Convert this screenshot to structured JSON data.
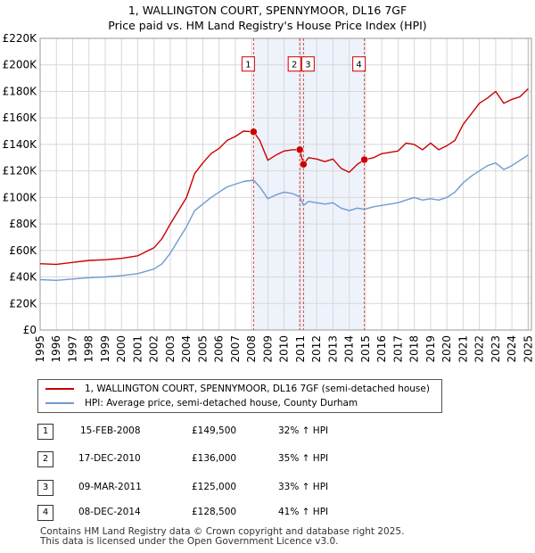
{
  "header": {
    "title_line1": "1, WALLINGTON COURT, SPENNYMOOR, DL16 7GF",
    "title_line2": "Price paid vs. HM Land Registry's House Price Index (HPI)"
  },
  "colors": {
    "property": "#cc0000",
    "hpi": "#6f9bd1",
    "shade": "#eef2fb",
    "marker_line": "#cc0000",
    "grid": "#d8d8d8"
  },
  "chart_data": {
    "type": "line",
    "title": "1, WALLINGTON COURT, SPENNYMOOR, DL16 7GF — Price paid vs. HM Land Registry's House Price Index (HPI)",
    "xlabel": "",
    "ylabel": "",
    "xlim": [
      1995,
      2025.2
    ],
    "ylim": [
      0,
      220000
    ],
    "grid": true,
    "x_ticks": [
      "1995",
      "1996",
      "1997",
      "1998",
      "1999",
      "2000",
      "2001",
      "2002",
      "2003",
      "2004",
      "2005",
      "2006",
      "2007",
      "2008",
      "2009",
      "2010",
      "2011",
      "2012",
      "2013",
      "2014",
      "2015",
      "2016",
      "2017",
      "2018",
      "2019",
      "2020",
      "2021",
      "2022",
      "2023",
      "2024",
      "2025"
    ],
    "y_ticks": [
      "£0",
      "£20K",
      "£40K",
      "£60K",
      "£80K",
      "£100K",
      "£120K",
      "£140K",
      "£160K",
      "£180K",
      "£200K",
      "£220K"
    ],
    "series": [
      {
        "name": "1, WALLINGTON COURT, SPENNYMOOR, DL16 7GF (semi-detached house)",
        "color": "#cc0000",
        "points": [
          [
            1995.0,
            50000
          ],
          [
            1996.0,
            49500
          ],
          [
            1997.0,
            51000
          ],
          [
            1998.0,
            52500
          ],
          [
            1999.0,
            53000
          ],
          [
            2000.0,
            54000
          ],
          [
            2001.0,
            56000
          ],
          [
            2002.0,
            62000
          ],
          [
            2002.5,
            69000
          ],
          [
            2003.0,
            80000
          ],
          [
            2003.5,
            90000
          ],
          [
            2004.0,
            100000
          ],
          [
            2004.5,
            118000
          ],
          [
            2005.0,
            126000
          ],
          [
            2005.5,
            133000
          ],
          [
            2006.0,
            137000
          ],
          [
            2006.5,
            143000
          ],
          [
            2007.0,
            146000
          ],
          [
            2007.5,
            150000
          ],
          [
            2008.12,
            149500
          ],
          [
            2008.5,
            143000
          ],
          [
            2009.0,
            128000
          ],
          [
            2009.5,
            132000
          ],
          [
            2010.0,
            135000
          ],
          [
            2010.5,
            136000
          ],
          [
            2010.96,
            136000
          ],
          [
            2011.19,
            125000
          ],
          [
            2011.5,
            130000
          ],
          [
            2012.0,
            129000
          ],
          [
            2012.5,
            127000
          ],
          [
            2013.0,
            129000
          ],
          [
            2013.5,
            122000
          ],
          [
            2014.0,
            119000
          ],
          [
            2014.5,
            125000
          ],
          [
            2014.93,
            128500
          ],
          [
            2015.5,
            130000
          ],
          [
            2016.0,
            133000
          ],
          [
            2017.0,
            135000
          ],
          [
            2017.5,
            141000
          ],
          [
            2018.0,
            140000
          ],
          [
            2018.5,
            136000
          ],
          [
            2019.0,
            141000
          ],
          [
            2019.5,
            136000
          ],
          [
            2020.0,
            139000
          ],
          [
            2020.5,
            143000
          ],
          [
            2021.0,
            155000
          ],
          [
            2021.5,
            163000
          ],
          [
            2022.0,
            171000
          ],
          [
            2022.5,
            175000
          ],
          [
            2023.0,
            180000
          ],
          [
            2023.5,
            171000
          ],
          [
            2024.0,
            174000
          ],
          [
            2024.5,
            176000
          ],
          [
            2025.0,
            182000
          ]
        ]
      },
      {
        "name": "HPI: Average price, semi-detached house, County Durham",
        "color": "#6f9bd1",
        "points": [
          [
            1995.0,
            38000
          ],
          [
            1996.0,
            37500
          ],
          [
            1997.0,
            38500
          ],
          [
            1998.0,
            39500
          ],
          [
            1999.0,
            40000
          ],
          [
            2000.0,
            41000
          ],
          [
            2001.0,
            42500
          ],
          [
            2002.0,
            46000
          ],
          [
            2002.5,
            50000
          ],
          [
            2003.0,
            58000
          ],
          [
            2003.5,
            68000
          ],
          [
            2004.0,
            78000
          ],
          [
            2004.5,
            90000
          ],
          [
            2005.0,
            95000
          ],
          [
            2005.5,
            100000
          ],
          [
            2006.0,
            104000
          ],
          [
            2006.5,
            108000
          ],
          [
            2007.0,
            110000
          ],
          [
            2007.5,
            112000
          ],
          [
            2008.12,
            113000
          ],
          [
            2008.5,
            108000
          ],
          [
            2009.0,
            99000
          ],
          [
            2009.5,
            102000
          ],
          [
            2010.0,
            104000
          ],
          [
            2010.5,
            103000
          ],
          [
            2010.96,
            100500
          ],
          [
            2011.19,
            94000
          ],
          [
            2011.5,
            97000
          ],
          [
            2012.0,
            96000
          ],
          [
            2012.5,
            95000
          ],
          [
            2013.0,
            96000
          ],
          [
            2013.5,
            92000
          ],
          [
            2014.0,
            90000
          ],
          [
            2014.5,
            92000
          ],
          [
            2014.93,
            91000
          ],
          [
            2015.5,
            93000
          ],
          [
            2016.0,
            94000
          ],
          [
            2017.0,
            96000
          ],
          [
            2017.5,
            98000
          ],
          [
            2018.0,
            100000
          ],
          [
            2018.5,
            98000
          ],
          [
            2019.0,
            99000
          ],
          [
            2019.5,
            98000
          ],
          [
            2020.0,
            100000
          ],
          [
            2020.5,
            104000
          ],
          [
            2021.0,
            111000
          ],
          [
            2021.5,
            116000
          ],
          [
            2022.0,
            120000
          ],
          [
            2022.5,
            124000
          ],
          [
            2023.0,
            126000
          ],
          [
            2023.5,
            121000
          ],
          [
            2024.0,
            124000
          ],
          [
            2024.5,
            128000
          ],
          [
            2025.0,
            132000
          ]
        ]
      }
    ],
    "sales": [
      {
        "label": "1",
        "date": "15-FEB-2008",
        "x": 2008.12,
        "price": 149500,
        "price_text": "£149,500",
        "hpi_text": "32% ↑ HPI"
      },
      {
        "label": "2",
        "date": "17-DEC-2010",
        "x": 2010.96,
        "price": 136000,
        "price_text": "£136,000",
        "hpi_text": "35% ↑ HPI"
      },
      {
        "label": "3",
        "date": "09-MAR-2011",
        "x": 2011.19,
        "price": 125000,
        "price_text": "£125,000",
        "hpi_text": "33% ↑ HPI"
      },
      {
        "label": "4",
        "date": "08-DEC-2014",
        "x": 2014.93,
        "price": 128500,
        "price_text": "£128,500",
        "hpi_text": "41% ↑ HPI"
      }
    ],
    "shaded_ranges": [
      [
        2008.12,
        2014.93
      ]
    ],
    "marker_box_labels": [
      "1",
      "2",
      "3",
      "4"
    ]
  },
  "legend": {
    "property_label": "1, WALLINGTON COURT, SPENNYMOOR, DL16 7GF (semi-detached house)",
    "hpi_label": "HPI: Average price, semi-detached house, County Durham"
  },
  "footer": {
    "line1": "Contains HM Land Registry data © Crown copyright and database right 2025.",
    "line2": "This data is licensed under the Open Government Licence v3.0."
  }
}
